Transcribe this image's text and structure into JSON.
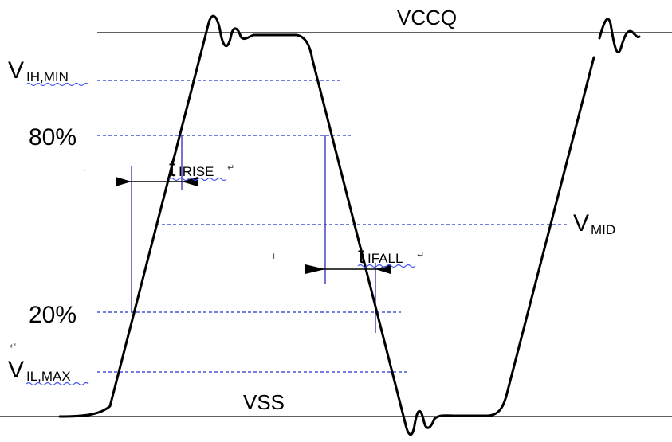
{
  "levels": {
    "vccq": "VCCQ",
    "vss": "VSS"
  },
  "thresholds": {
    "vih_main": "V",
    "vih_sub": "IH,MIN",
    "p80": "80%",
    "p20": "20%",
    "vil_main": "V",
    "vil_sub": "IL,MAX",
    "vmid_main": "V",
    "vmid_sub": "MID"
  },
  "timing": {
    "rise_main": "t",
    "rise_sub": "IRISE",
    "fall_main": "t",
    "fall_sub": "IFALL"
  },
  "marks": {
    "return": "↵",
    "cross": "+",
    "dot": "·"
  }
}
